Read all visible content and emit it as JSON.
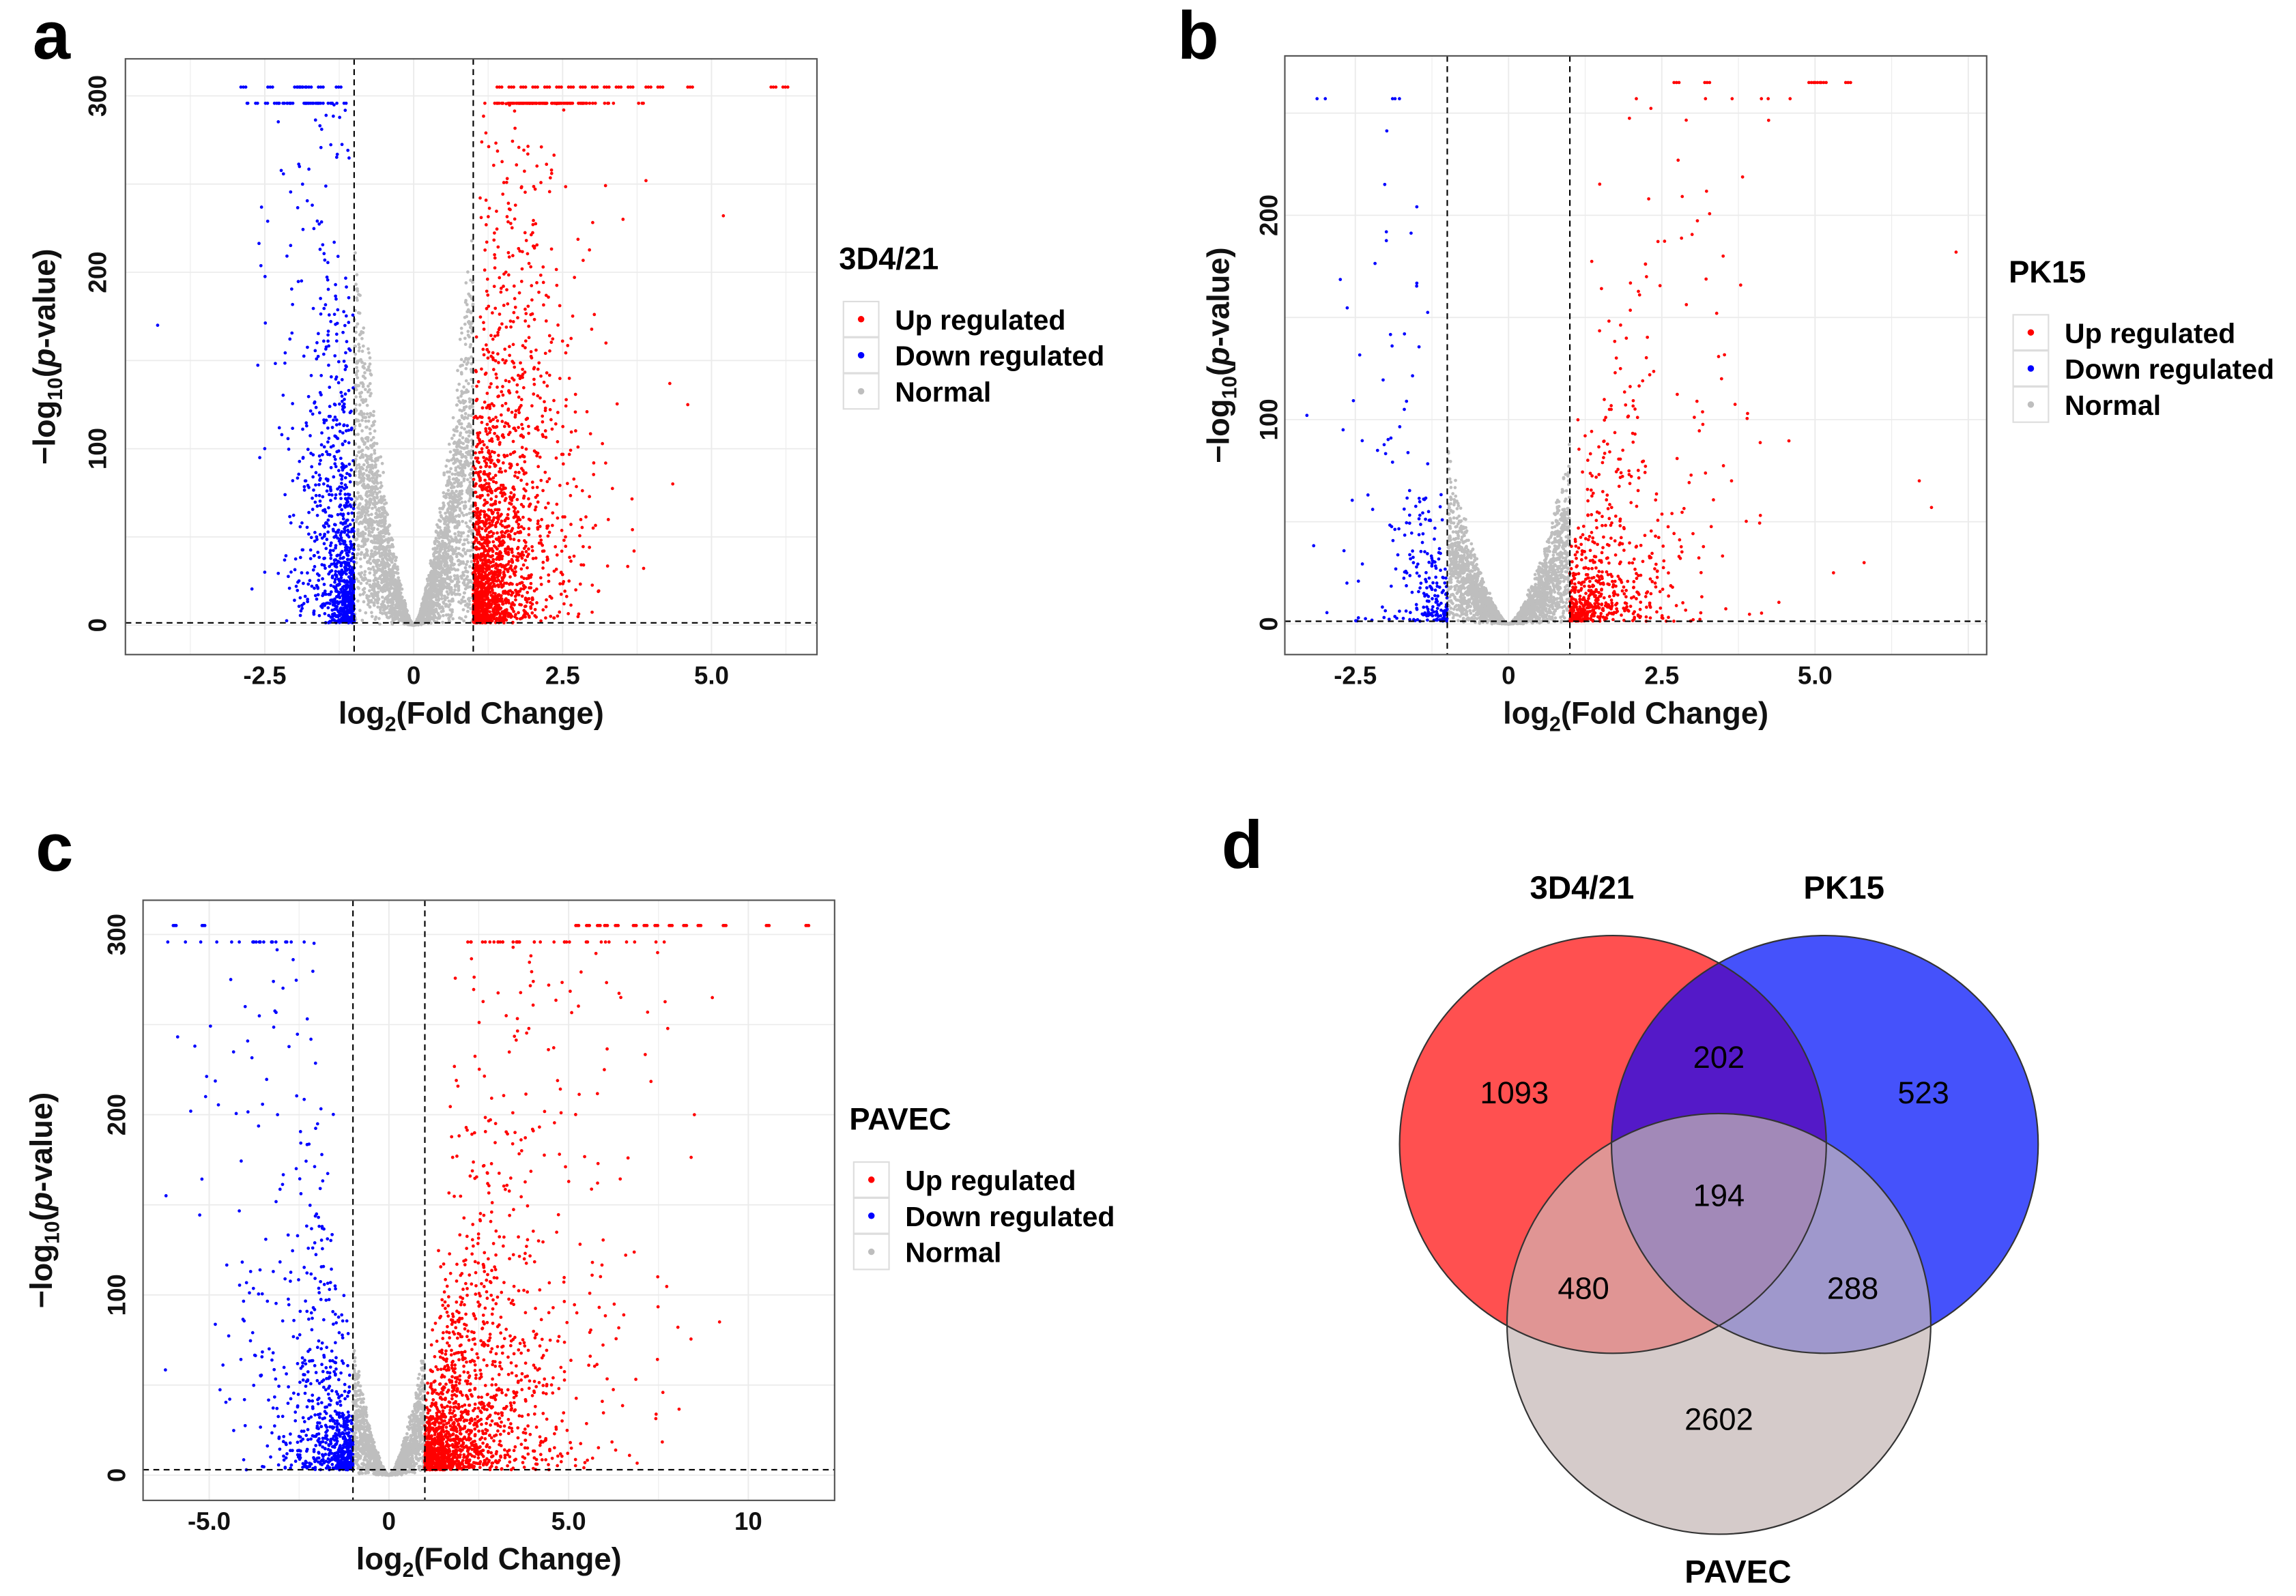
{
  "panel_letters": {
    "a": "a",
    "b": "b",
    "c": "c",
    "d": "d"
  },
  "legend_items": [
    "Up regulated",
    "Down regulated",
    "Normal"
  ],
  "colors": {
    "up": "#ff0000",
    "down": "#0000ff",
    "normal": "#bebebe",
    "grid": "#ebebeb"
  },
  "chart_data": [
    {
      "type": "scatter",
      "id": "a",
      "title": "3D4/21",
      "xlabel": "log2(Fold Change)",
      "ylabel": "-log10(p-value)",
      "xlim": [
        -4.84,
        6.77
      ],
      "ylim": [
        -16.7,
        321
      ],
      "xticks": [
        "-2.5",
        "0",
        "2.5",
        "5.0"
      ],
      "xtick_values": [
        -2.5,
        0,
        2.5,
        5.0
      ],
      "yticks": [
        "0",
        "100",
        "200",
        "300"
      ],
      "ytick_values": [
        0,
        100,
        200,
        300
      ],
      "fc_threshold": [
        -1,
        1
      ],
      "p_threshold": 1.3,
      "saturation_value": 305,
      "approx_counts": {
        "up": 1969,
        "down": 1000,
        "normal": 3000
      },
      "x_spread": {
        "up": 0.55,
        "down": 0.35
      },
      "y_scale": 70,
      "outliers": [
        [
          -4.3,
          170
        ],
        [
          5.2,
          232
        ],
        [
          3.9,
          252
        ],
        [
          4.3,
          137
        ],
        [
          4.6,
          125
        ],
        [
          4.35,
          80
        ],
        [
          3.7,
          42
        ],
        [
          -2.5,
          100
        ],
        [
          -2.5,
          30
        ]
      ],
      "saturated_x": [
        -2.9,
        -2.45,
        -2.0,
        -1.95,
        -1.9,
        -1.8,
        -1.6,
        -1.3,
        1.4,
        1.6,
        1.8,
        2.0,
        2.2,
        2.4,
        2.6,
        2.8,
        3.0,
        3.2,
        3.4,
        3.6,
        3.9,
        4.1,
        4.6,
        6.0,
        6.2
      ]
    },
    {
      "type": "scatter",
      "id": "b",
      "title": "PK15",
      "xlabel": "log2(Fold Change)",
      "ylabel": "-log10(p-value)",
      "xlim": [
        -3.65,
        7.8
      ],
      "ylim": [
        -15,
        278
      ],
      "xticks": [
        "-2.5",
        "0",
        "2.5",
        "5.0"
      ],
      "xtick_values": [
        -2.5,
        0,
        2.5,
        5.0
      ],
      "yticks": [
        "0",
        "100",
        "200"
      ],
      "ytick_values": [
        0,
        100,
        200
      ],
      "fc_threshold": [
        -1,
        1
      ],
      "p_threshold": 1.3,
      "saturation_value": 265,
      "approx_counts": {
        "up": 700,
        "down": 250,
        "normal": 2500
      },
      "x_spread": {
        "up": 0.7,
        "down": 0.45
      },
      "y_scale": 25,
      "outliers": [
        [
          7.3,
          182
        ],
        [
          6.7,
          70
        ],
        [
          6.9,
          57
        ],
        [
          5.8,
          30
        ],
        [
          5.3,
          25
        ],
        [
          -1.9,
          136
        ],
        [
          -1.7,
          105
        ],
        [
          -2.7,
          95
        ],
        [
          3.9,
          103
        ],
        [
          3.5,
          180
        ]
      ],
      "saturated_x": [
        2.7,
        3.2,
        4.9,
        5.0,
        5.1,
        5.5
      ]
    },
    {
      "type": "scatter",
      "id": "c",
      "title": "PAVEC",
      "xlabel": "log2(Fold Change)",
      "ylabel": "-log10(p-value)",
      "xlim": [
        -6.84,
        12.4
      ],
      "ylim": [
        -14,
        319
      ],
      "xticks": [
        "-5.0",
        "0",
        "5.0",
        "10"
      ],
      "xtick_values": [
        -5.0,
        0,
        5.0,
        10
      ],
      "yticks": [
        "0",
        "100",
        "200",
        "300"
      ],
      "ytick_values": [
        0,
        100,
        200,
        300
      ],
      "fc_threshold": [
        -1,
        1
      ],
      "p_threshold": 3,
      "saturation_value": 305,
      "approx_counts": {
        "up": 1800,
        "down": 800,
        "normal": 1500
      },
      "x_spread": {
        "up": 1.4,
        "down": 1.0
      },
      "y_scale": 22,
      "outliers": [
        [
          9.0,
          265
        ],
        [
          8.5,
          200
        ],
        [
          9.2,
          85
        ],
        [
          -6.2,
          155
        ],
        [
          -5.4,
          238
        ],
        [
          -5.1,
          210
        ],
        [
          -4.4,
          275
        ],
        [
          -4.0,
          260
        ],
        [
          -3.1,
          200
        ]
      ],
      "saturated_x": [
        -6.0,
        -5.2,
        5.2,
        5.5,
        5.8,
        6.0,
        6.3,
        6.8,
        7.1,
        7.4,
        7.8,
        8.2,
        8.6,
        9.3,
        10.5,
        11.6
      ]
    },
    {
      "type": "venn",
      "id": "d",
      "sets": [
        "3D4/21",
        "PK15",
        "PAVEC"
      ],
      "regions": {
        "only_3D4_21": "1093",
        "only_PK15": "523",
        "only_PAVEC": "2602",
        "3D4_21_PK15": "202",
        "3D4_21_PAVEC": "480",
        "PK15_PAVEC": "288",
        "all_three": "194"
      },
      "colors": {
        "3D4_21": "#ff5050",
        "PK15": "#4552fb",
        "PAVEC": "#d5cbca",
        "3D4_21_PK15": "#5419c8",
        "3D4_21_PAVEC": "#e09594",
        "PK15_PAVEC": "#9f98cc",
        "all_three": "#a289b8"
      }
    }
  ]
}
